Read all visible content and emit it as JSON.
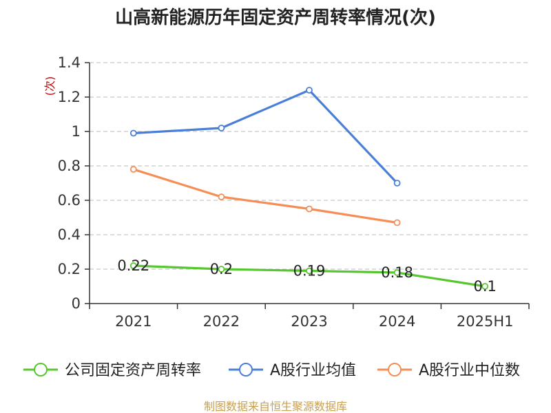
{
  "colors": {
    "company": "#56c72e",
    "avg": "#4a7fd8",
    "median": "#f58d54",
    "axis": "#333333",
    "grid": "#c8c8c8",
    "ylabel": "#c00000",
    "source": "#c8a050"
  },
  "chart_data": {
    "type": "line",
    "title": "山高新能源历年固定资产周转率情况(次)",
    "ylabel": "(次)",
    "categories": [
      "2021",
      "2022",
      "2023",
      "2024",
      "2025H1"
    ],
    "ylim": [
      0,
      1.4
    ],
    "yticks": [
      {
        "value": 0,
        "label": "0"
      },
      {
        "value": 0.2,
        "label": "0.2"
      },
      {
        "value": 0.4,
        "label": "0.4"
      },
      {
        "value": 0.6,
        "label": "0.6"
      },
      {
        "value": 0.8,
        "label": "0.8"
      },
      {
        "value": 1,
        "label": "1"
      },
      {
        "value": 1.2,
        "label": "1.2"
      },
      {
        "value": 1.4,
        "label": "1.4"
      }
    ],
    "series": [
      {
        "key": "company",
        "name": "公司固定资产周转率",
        "values": [
          0.22,
          0.2,
          0.19,
          0.18,
          0.1
        ],
        "labels": [
          "0.22",
          "0.2",
          "0.19",
          "0.18",
          "0.1"
        ]
      },
      {
        "key": "avg",
        "name": "A股行业均值",
        "values": [
          0.99,
          1.02,
          1.24,
          0.7,
          null
        ]
      },
      {
        "key": "median",
        "name": "A股行业中位数",
        "values": [
          0.78,
          0.62,
          0.55,
          0.47,
          null
        ]
      }
    ],
    "grid": true,
    "legend_position": "bottom"
  },
  "source": "制图数据来自恒生聚源数据库"
}
